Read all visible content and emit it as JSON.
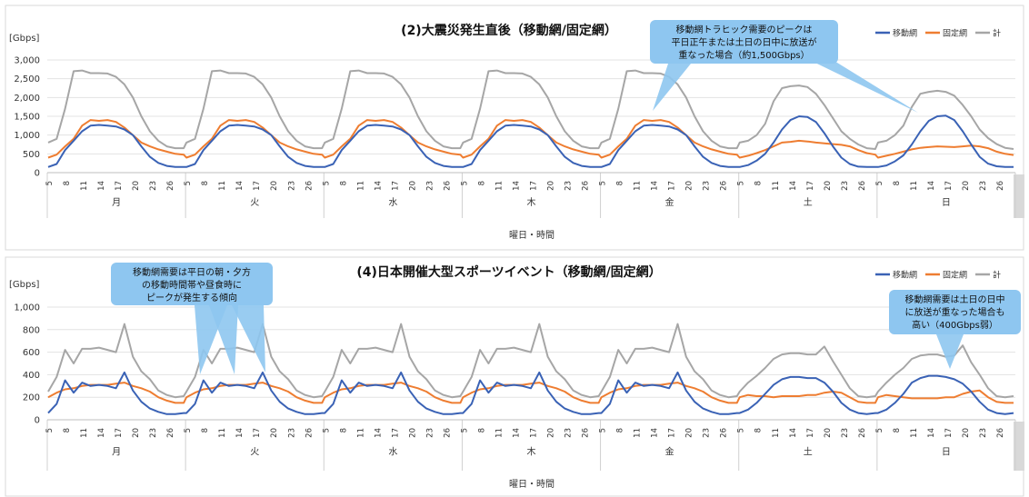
{
  "chart_data": [
    {
      "type": "line",
      "title": "(2)大震災発生直後（移動網/固定網）",
      "unit": "[Gbps]",
      "xlabel": "曜日・時間",
      "ylim": [
        0,
        3000
      ],
      "yticks": [
        "0",
        "500",
        "1,000",
        "1,500",
        "2,000",
        "2,500",
        "3,000"
      ],
      "hour_ticks": [
        "5",
        "8",
        "11",
        "14",
        "17",
        "20",
        "23",
        "26"
      ],
      "days": [
        "月",
        "火",
        "水",
        "木",
        "金",
        "土",
        "日"
      ],
      "legend": [
        "移動網",
        "固定網",
        "計"
      ],
      "colors": {
        "mobile": "#3a62b5",
        "fixed": "#ee7d31",
        "total": "#a6a6a6"
      },
      "series": [
        {
          "name": "移動網",
          "weekday": [
            150,
            230,
            600,
            850,
            1100,
            1250,
            1270,
            1250,
            1230,
            1150,
            1000,
            700,
            420,
            260,
            180,
            150,
            150
          ],
          "weekend": [
            150,
            200,
            320,
            500,
            800,
            1150,
            1400,
            1500,
            1480,
            1350,
            1050,
            700,
            400,
            230,
            160,
            150,
            150
          ],
          "sunday": [
            150,
            190,
            300,
            460,
            750,
            1100,
            1380,
            1500,
            1520,
            1400,
            1100,
            750,
            420,
            240,
            170,
            150,
            150
          ]
        },
        {
          "name": "固定網",
          "weekday": [
            400,
            480,
            700,
            900,
            1250,
            1400,
            1380,
            1400,
            1350,
            1200,
            1000,
            800,
            700,
            620,
            560,
            500,
            480
          ],
          "weekend": [
            400,
            450,
            520,
            600,
            700,
            800,
            820,
            850,
            830,
            800,
            780,
            760,
            740,
            700,
            600,
            520,
            480
          ],
          "sunday": [
            400,
            450,
            500,
            560,
            620,
            660,
            680,
            700,
            690,
            680,
            700,
            720,
            700,
            650,
            560,
            500,
            470
          ]
        },
        {
          "name": "計",
          "weekday": [
            800,
            900,
            1700,
            2700,
            2720,
            2650,
            2650,
            2640,
            2550,
            2350,
            2000,
            1500,
            1100,
            850,
            700,
            650,
            650
          ],
          "weekend": [
            800,
            850,
            1000,
            1300,
            1900,
            2250,
            2300,
            2320,
            2280,
            2100,
            1800,
            1450,
            1100,
            900,
            750,
            650,
            630
          ],
          "sunday": [
            800,
            850,
            1000,
            1250,
            1750,
            2100,
            2150,
            2180,
            2150,
            2050,
            1800,
            1500,
            1150,
            920,
            760,
            660,
            630
          ]
        }
      ],
      "annotation": {
        "lines": [
          "移動網トラヒック需要のピークは",
          "平日正午または土日の日中に放送が",
          "重なった場合（約1,500Gbps）"
        ]
      }
    },
    {
      "type": "line",
      "title": "(4)日本開催大型スポーツイベント（移動網/固定網）",
      "unit": "[Gbps]",
      "xlabel": "曜日・時間",
      "ylim": [
        0,
        1000
      ],
      "yticks": [
        "0",
        "200",
        "400",
        "600",
        "800",
        "1,000"
      ],
      "hour_ticks": [
        "5",
        "8",
        "11",
        "14",
        "17",
        "20",
        "23",
        "26"
      ],
      "days": [
        "月",
        "火",
        "水",
        "木",
        "金",
        "土",
        "日"
      ],
      "legend": [
        "移動網",
        "固定網",
        "計"
      ],
      "colors": {
        "mobile": "#3a62b5",
        "fixed": "#ee7d31",
        "total": "#a6a6a6"
      },
      "series": [
        {
          "name": "移動網",
          "weekday": [
            60,
            140,
            350,
            240,
            330,
            300,
            310,
            300,
            280,
            420,
            260,
            160,
            100,
            70,
            50,
            50,
            60
          ],
          "weekend": [
            60,
            90,
            150,
            230,
            310,
            360,
            380,
            380,
            370,
            370,
            330,
            250,
            150,
            90,
            60,
            50,
            60
          ],
          "sunday": [
            60,
            90,
            150,
            230,
            330,
            370,
            390,
            390,
            380,
            360,
            320,
            250,
            160,
            90,
            60,
            50,
            60
          ]
        },
        {
          "name": "固定網",
          "weekday": [
            200,
            240,
            270,
            280,
            300,
            310,
            310,
            310,
            320,
            330,
            300,
            280,
            250,
            200,
            170,
            150,
            150
          ],
          "weekend": [
            200,
            220,
            210,
            210,
            200,
            210,
            210,
            210,
            220,
            220,
            240,
            250,
            240,
            200,
            160,
            150,
            150
          ],
          "sunday": [
            200,
            220,
            210,
            200,
            190,
            190,
            190,
            190,
            200,
            200,
            230,
            250,
            260,
            200,
            160,
            150,
            150
          ]
        },
        {
          "name": "計",
          "weekday": [
            250,
            380,
            620,
            500,
            630,
            630,
            640,
            620,
            600,
            850,
            560,
            430,
            360,
            260,
            220,
            200,
            210
          ],
          "weekend": [
            250,
            330,
            390,
            460,
            540,
            580,
            590,
            590,
            580,
            580,
            650,
            520,
            400,
            280,
            210,
            200,
            210
          ],
          "sunday": [
            250,
            330,
            400,
            460,
            540,
            570,
            580,
            580,
            560,
            570,
            660,
            510,
            400,
            280,
            210,
            200,
            210
          ]
        }
      ],
      "annotations": [
        {
          "lines": [
            "移動網需要は平日の朝・夕方",
            "の移動時間帯や昼食時に",
            "ピークが発生する傾向"
          ]
        },
        {
          "lines": [
            "移動網需要は土日の日中",
            "に放送が重なった場合も",
            "高い（400Gbps弱）"
          ]
        }
      ]
    }
  ]
}
